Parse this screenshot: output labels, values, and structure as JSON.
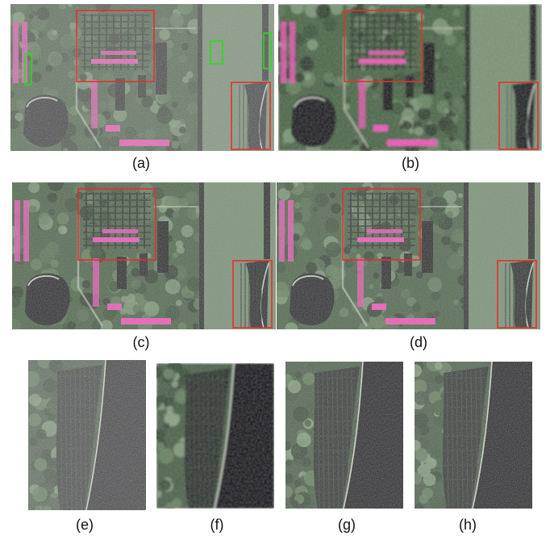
{
  "figure": {
    "panels": [
      {
        "id": "a",
        "caption": "(a)",
        "kind": "full",
        "noise": "heavy",
        "green_boxes": true
      },
      {
        "id": "b",
        "caption": "(b)",
        "kind": "full",
        "noise": "smooth",
        "green_boxes": false
      },
      {
        "id": "c",
        "caption": "(c)",
        "kind": "full",
        "noise": "light",
        "green_boxes": false
      },
      {
        "id": "d",
        "caption": "(d)",
        "kind": "full",
        "noise": "light",
        "green_boxes": false
      },
      {
        "id": "e",
        "caption": "(e)",
        "kind": "crop",
        "noise": "heavy"
      },
      {
        "id": "f",
        "caption": "(f)",
        "kind": "crop",
        "noise": "smooth"
      },
      {
        "id": "g",
        "caption": "(g)",
        "kind": "crop",
        "noise": "light"
      },
      {
        "id": "h",
        "caption": "(h)",
        "kind": "crop",
        "noise": "light"
      }
    ],
    "colors": {
      "red_box": "#e0322c",
      "green_box": "#22e01a",
      "vegetation": "#4f6a4b",
      "field": "#7f947a",
      "building_pink": "#e85ab8",
      "dark_water": "#15151d",
      "background": "#ffffff"
    }
  }
}
